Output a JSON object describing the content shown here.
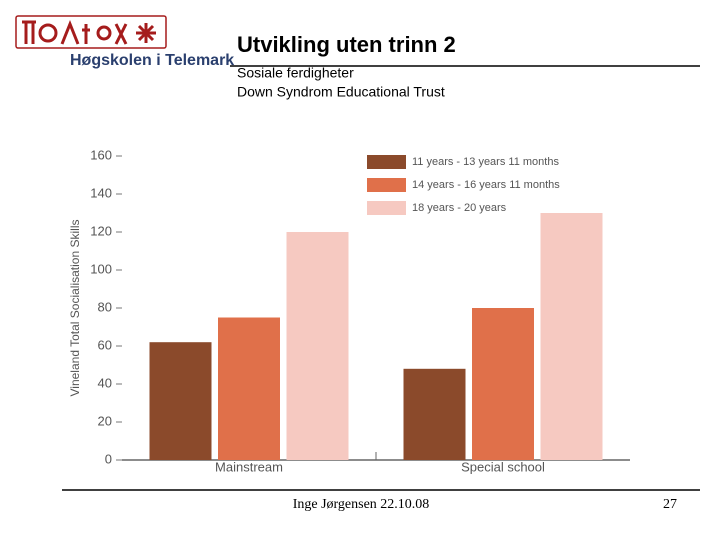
{
  "header": {
    "logo_text": "Høgskolen i Telemark",
    "title": "Utvikling uten trinn 2",
    "subtitle_lines": [
      "Sosiale ferdigheter",
      "Down Syndrom Educational Trust"
    ]
  },
  "chart_data": {
    "type": "bar",
    "y_label": "Vineland Total Socialisation Skills",
    "categories": [
      "Mainstream",
      "Special school"
    ],
    "series": [
      {
        "name": "11 years - 13 years 11 months",
        "color": "#8b4a2b",
        "values": [
          62,
          48
        ]
      },
      {
        "name": "14 years - 16 years 11 months",
        "color": "#e0704a",
        "values": [
          75,
          80
        ]
      },
      {
        "name": "18 years - 20 years",
        "color": "#f6c9c1",
        "values": [
          120,
          130
        ]
      }
    ],
    "ylim": [
      0,
      160
    ],
    "yticks": [
      0,
      20,
      40,
      60,
      80,
      100,
      120,
      140,
      160
    ],
    "legend": "top-right",
    "grid": false
  },
  "footer": {
    "author": "Inge Jørgensen 22.10.08",
    "page": 27
  }
}
